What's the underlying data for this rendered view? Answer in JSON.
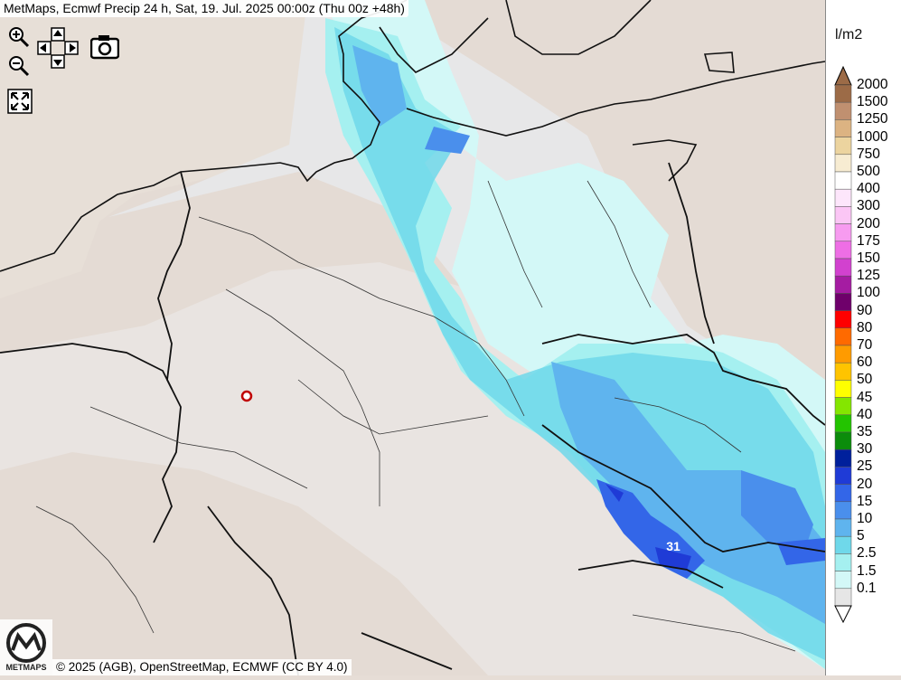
{
  "title": "MetMaps, Ecmwf Precip 24 h, Sat, 19. Jul. 2025 00:00z (Thu 00z +48h)",
  "credit": "© 2025 (AGB), OpenStreetMap, ECMWF (CC BY 4.0)",
  "logo_text": "METMAPS",
  "max_label": "31",
  "legend": {
    "unit": "l/m2",
    "steps": [
      {
        "label": "2000",
        "color": "#9c6b47"
      },
      {
        "label": "1500",
        "color": "#c09070"
      },
      {
        "label": "1250",
        "color": "#dcb382"
      },
      {
        "label": "1000",
        "color": "#ecd49f"
      },
      {
        "label": "750",
        "color": "#f7ecd2"
      },
      {
        "label": "500",
        "color": "#ffffff"
      },
      {
        "label": "400",
        "color": "#fde6fb"
      },
      {
        "label": "300",
        "color": "#fbc6f5"
      },
      {
        "label": "200",
        "color": "#f79bf0"
      },
      {
        "label": "175",
        "color": "#ee6ee5"
      },
      {
        "label": "150",
        "color": "#d241cf"
      },
      {
        "label": "125",
        "color": "#a51ca2"
      },
      {
        "label": "100",
        "color": "#6f006b"
      },
      {
        "label": "90",
        "color": "#ff0000"
      },
      {
        "label": "80",
        "color": "#ff6a00"
      },
      {
        "label": "70",
        "color": "#ff9b00"
      },
      {
        "label": "60",
        "color": "#ffc400"
      },
      {
        "label": "50",
        "color": "#ffff00"
      },
      {
        "label": "45",
        "color": "#84e600"
      },
      {
        "label": "40",
        "color": "#23c400"
      },
      {
        "label": "35",
        "color": "#0b8c0b"
      },
      {
        "label": "30",
        "color": "#00209c"
      },
      {
        "label": "25",
        "color": "#1f3bd6"
      },
      {
        "label": "20",
        "color": "#3366e8"
      },
      {
        "label": "15",
        "color": "#4a8fec"
      },
      {
        "label": "10",
        "color": "#5fb4ee"
      },
      {
        "label": "5",
        "color": "#6fd8ea"
      },
      {
        "label": "2.5",
        "color": "#a5f0f0"
      },
      {
        "label": "1.5",
        "color": "#d3f8f7"
      },
      {
        "label": "0.1",
        "color": "#e6e6e6"
      }
    ]
  }
}
